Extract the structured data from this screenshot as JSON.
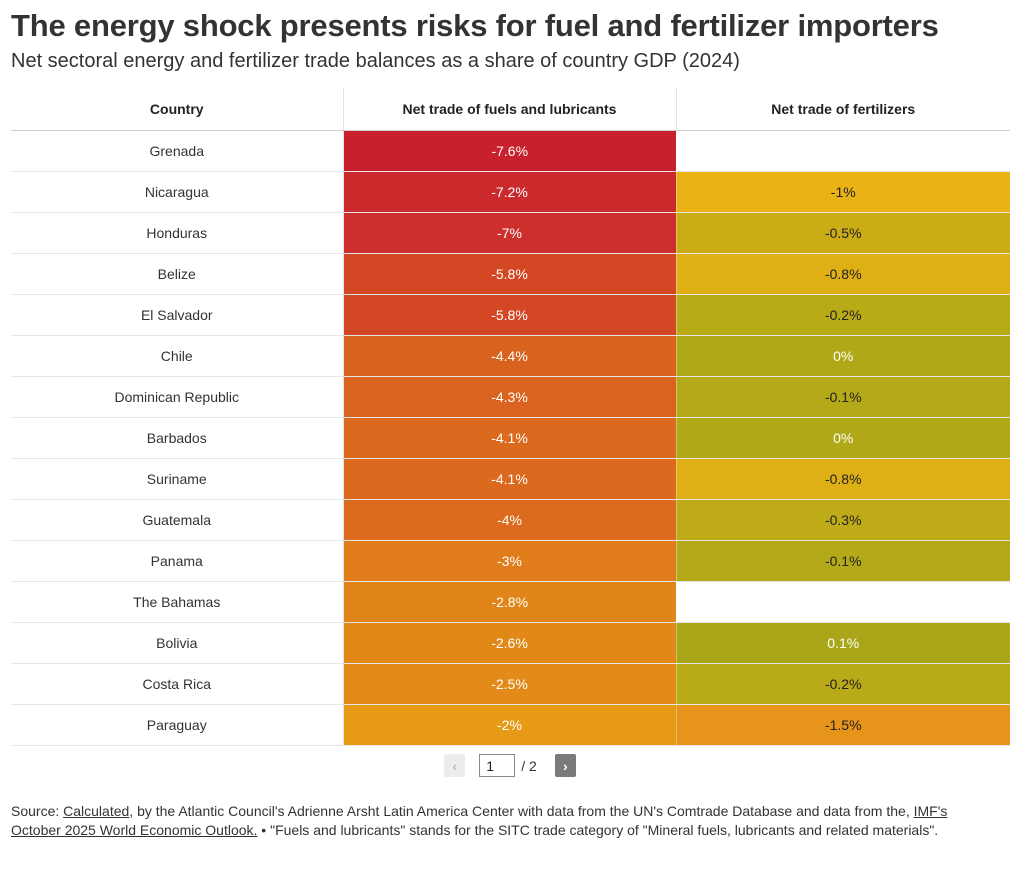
{
  "title": "The energy shock presents risks for fuel and fertilizer importers",
  "subtitle": "Net sectoral energy and fertilizer trade balances as a share of country GDP (2024)",
  "chart_data": {
    "type": "table",
    "columns": [
      "Country",
      "Net trade of fuels and lubricants",
      "Net trade of fertilizers"
    ],
    "rows": [
      {
        "country": "Grenada",
        "fuels": "-7.6%",
        "fertilizers": "",
        "fuels_color": "#c8202d",
        "fert_color": ""
      },
      {
        "country": "Nicaragua",
        "fuels": "-7.2%",
        "fertilizers": "-1%",
        "fuels_color": "#ca2a2c",
        "fert_color": "#ebb216"
      },
      {
        "country": "Honduras",
        "fuels": "-7%",
        "fertilizers": "-0.5%",
        "fuels_color": "#cc2f2c",
        "fert_color": "#c9ac16"
      },
      {
        "country": "Belize",
        "fuels": "-5.8%",
        "fertilizers": "-0.8%",
        "fuels_color": "#d34724",
        "fert_color": "#dfb016"
      },
      {
        "country": "El Salvador",
        "fuels": "-5.8%",
        "fertilizers": "-0.2%",
        "fuels_color": "#d34724",
        "fert_color": "#b9aa17"
      },
      {
        "country": "Chile",
        "fuels": "-4.4%",
        "fertilizers": "0%",
        "fuels_color": "#d9621f",
        "fert_color": "#b1a818"
      },
      {
        "country": "Dominican Republic",
        "fuels": "-4.3%",
        "fertilizers": "-0.1%",
        "fuels_color": "#da641f",
        "fert_color": "#b4a918"
      },
      {
        "country": "Barbados",
        "fuels": "-4.1%",
        "fertilizers": "0%",
        "fuels_color": "#db691e",
        "fert_color": "#b1a818"
      },
      {
        "country": "Suriname",
        "fuels": "-4.1%",
        "fertilizers": "-0.8%",
        "fuels_color": "#db691e",
        "fert_color": "#dfb016"
      },
      {
        "country": "Guatemala",
        "fuels": "-4%",
        "fertilizers": "-0.3%",
        "fuels_color": "#dc6b1e",
        "fert_color": "#bfab17"
      },
      {
        "country": "Panama",
        "fuels": "-3%",
        "fertilizers": "-0.1%",
        "fuels_color": "#e07d1a",
        "fert_color": "#b4a918"
      },
      {
        "country": "The Bahamas",
        "fuels": "-2.8%",
        "fertilizers": "",
        "fuels_color": "#e18419",
        "fert_color": ""
      },
      {
        "country": "Bolivia",
        "fuels": "-2.6%",
        "fertilizers": "0.1%",
        "fuels_color": "#e28818",
        "fert_color": "#a9a619"
      },
      {
        "country": "Costa Rica",
        "fuels": "-2.5%",
        "fertilizers": "-0.2%",
        "fuels_color": "#e38b18",
        "fert_color": "#b9aa17"
      },
      {
        "country": "Paraguay",
        "fuels": "-2%",
        "fertilizers": "-1.5%",
        "fuels_color": "#e69a16",
        "fert_color": "#e6941a"
      }
    ],
    "light_text_values": [
      "-1%",
      "-0.5%",
      "-0.8%",
      "-0.2%",
      "-0.1%",
      "-0.3%",
      "-1.5%",
      "-2%",
      "-2.5%",
      "-2.6%",
      "-2.8%"
    ]
  },
  "pagination": {
    "prev_icon": "‹",
    "current_page": "1",
    "total": "/ 2",
    "next_icon": "›"
  },
  "footer": {
    "source_label": "Source: ",
    "source_link": "Calculated",
    "text_1": ", by the Atlantic Council's Adrienne Arsht Latin America Center with data from the UN's Comtrade Database and data from the, ",
    "imf_link": "IMF's October 2025 World Economic Outlook.",
    "text_2": " • \"Fuels and lubricants\" stands for the SITC trade category of \"Mineral fuels, lubricants and related materials\"."
  }
}
